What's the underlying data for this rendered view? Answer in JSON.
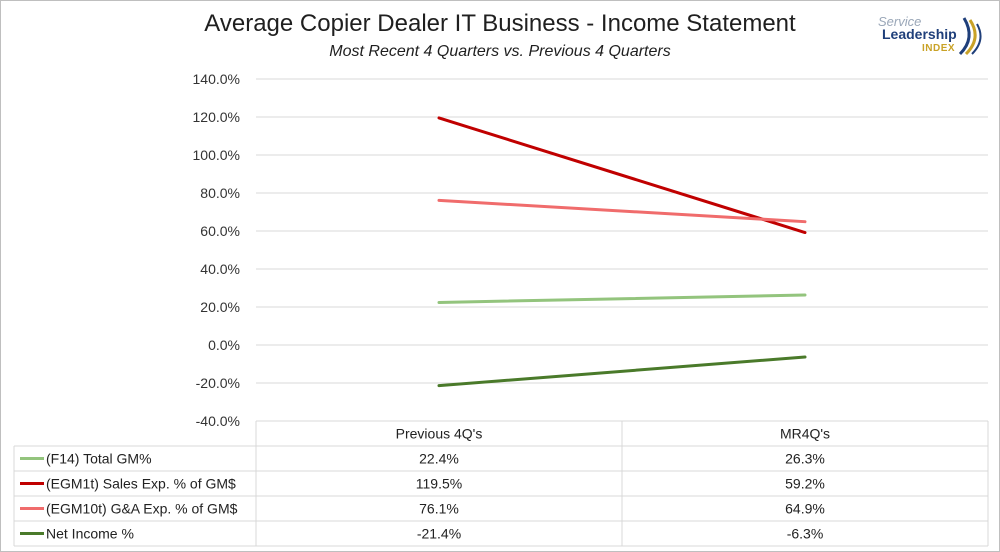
{
  "header": {
    "title": "Average Copier Dealer IT Business - Income Statement",
    "subtitle": "Most Recent 4 Quarters vs. Previous 4 Quarters",
    "logo_line1": "Service",
    "logo_line2": "Leadership",
    "logo_line3": "INDEX"
  },
  "chart_data": {
    "type": "line",
    "title": "Average Copier Dealer IT Business - Income Statement",
    "subtitle": "Most Recent 4 Quarters vs. Previous 4 Quarters",
    "categories": [
      "Previous 4Q's",
      "MR4Q's"
    ],
    "ylim": [
      -40,
      140
    ],
    "ytick_step": 20,
    "ytick_labels": [
      "140.0%",
      "120.0%",
      "100.0%",
      "80.0%",
      "60.0%",
      "40.0%",
      "20.0%",
      "0.0%",
      "-20.0%",
      "-40.0%"
    ],
    "grid": true,
    "legend": "data-table",
    "series": [
      {
        "name": "(F14) Total GM%",
        "color": "#93c47d",
        "values": [
          22.4,
          26.3
        ],
        "labels": [
          "22.4%",
          "26.3%"
        ]
      },
      {
        "name": "(EGM1t) Sales Exp. % of GM$",
        "color": "#c00000",
        "values": [
          119.5,
          59.2
        ],
        "labels": [
          "119.5%",
          "59.2%"
        ]
      },
      {
        "name": "(EGM10t) G&A Exp. % of GM$",
        "color": "#f06c6c",
        "values": [
          76.1,
          64.9
        ],
        "labels": [
          "76.1%",
          "64.9%"
        ]
      },
      {
        "name": "Net Income %",
        "color": "#4a7a2a",
        "values": [
          -21.4,
          -6.3
        ],
        "labels": [
          "-21.4%",
          "-6.3%"
        ]
      }
    ]
  }
}
